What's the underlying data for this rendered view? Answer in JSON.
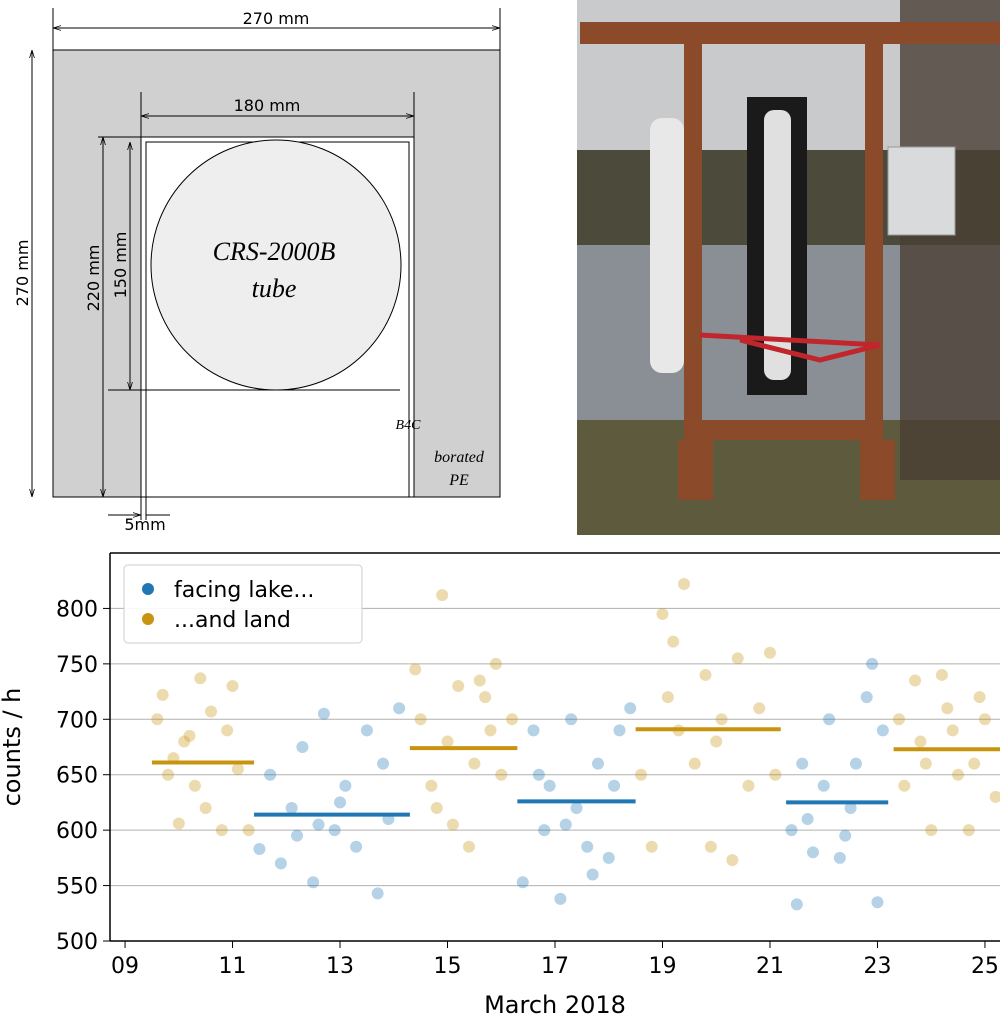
{
  "diagram": {
    "outer_width": "270 mm",
    "inner_width": "180 mm",
    "outer_height": "270 mm",
    "inner_height": "220 mm",
    "tube_diameter": "150 mm",
    "tube_label": [
      "CRS-2000B",
      "tube"
    ],
    "liner_label": "B4C",
    "shield_label": [
      "borated",
      "PE"
    ],
    "liner_thickness": "5mm"
  },
  "chart_data": {
    "type": "scatter",
    "xlabel": "March 2018",
    "ylabel": "counts / h",
    "xlim": [
      8.72,
      25.28
    ],
    "xticks": [
      {
        "value": 9,
        "label": "09"
      },
      11,
      13,
      15,
      17,
      19,
      21,
      23,
      25
    ],
    "ylim": [
      500,
      850
    ],
    "yticks": [
      500,
      550,
      600,
      650,
      700,
      750,
      800
    ],
    "grid": true,
    "legend": "upper left",
    "series": [
      {
        "name": "facing lake...",
        "color": "#1f77b4",
        "x": [
          11.5,
          11.7,
          11.9,
          12.1,
          12.3,
          12.5,
          12.7,
          12.9,
          13.1,
          13.3,
          13.5,
          13.7,
          13.9,
          14.1,
          12.2,
          13.0,
          13.8,
          12.6,
          16.4,
          16.6,
          16.8,
          16.9,
          17.1,
          17.3,
          17.4,
          17.6,
          17.8,
          18.0,
          18.2,
          18.4,
          16.7,
          17.2,
          17.7,
          18.1,
          21.4,
          21.5,
          21.6,
          21.8,
          22.0,
          22.1,
          22.3,
          22.5,
          22.6,
          22.8,
          23.0,
          23.1,
          21.7,
          22.4,
          22.9
        ],
        "values": [
          583,
          650,
          570,
          620,
          675,
          553,
          705,
          600,
          640,
          585,
          690,
          543,
          610,
          710,
          595,
          625,
          660,
          605,
          553,
          690,
          600,
          640,
          538,
          700,
          620,
          585,
          660,
          575,
          690,
          710,
          650,
          605,
          560,
          640,
          600,
          533,
          660,
          580,
          640,
          700,
          575,
          620,
          660,
          720,
          535,
          690,
          610,
          595,
          750
        ],
        "means": [
          {
            "start": 11.4,
            "end": 14.3,
            "value": 614
          },
          {
            "start": 16.3,
            "end": 18.5,
            "value": 626
          },
          {
            "start": 21.3,
            "end": 23.2,
            "value": 625
          }
        ]
      },
      {
        "name": "...and land",
        "color": "#c8930f",
        "x": [
          9.6,
          9.7,
          9.9,
          10.0,
          10.1,
          10.3,
          10.4,
          10.5,
          10.6,
          10.8,
          10.9,
          11.0,
          11.1,
          11.3,
          9.8,
          10.2,
          14.4,
          14.5,
          14.7,
          14.9,
          15.0,
          15.2,
          15.4,
          15.5,
          15.7,
          15.9,
          16.0,
          16.2,
          14.8,
          15.6,
          15.1,
          15.8,
          18.6,
          18.8,
          19.0,
          19.1,
          19.3,
          19.4,
          19.6,
          19.8,
          19.9,
          20.1,
          20.3,
          20.4,
          20.6,
          20.8,
          21.0,
          21.1,
          19.2,
          20.0,
          23.4,
          23.5,
          23.7,
          23.9,
          24.0,
          24.2,
          24.4,
          24.5,
          24.7,
          24.9,
          25.0,
          25.2,
          23.8,
          24.3,
          24.8
        ],
        "values": [
          700,
          722,
          665,
          606,
          680,
          640,
          737,
          620,
          707,
          600,
          690,
          730,
          655,
          600,
          650,
          685,
          745,
          700,
          640,
          812,
          680,
          730,
          585,
          660,
          720,
          750,
          650,
          700,
          620,
          735,
          605,
          690,
          650,
          585,
          795,
          720,
          690,
          822,
          660,
          740,
          585,
          700,
          573,
          755,
          640,
          710,
          760,
          650,
          770,
          680,
          700,
          640,
          735,
          660,
          600,
          740,
          690,
          650,
          600,
          720,
          700,
          630,
          680,
          710,
          660
        ],
        "means": [
          {
            "start": 9.5,
            "end": 11.4,
            "value": 661
          },
          {
            "start": 14.3,
            "end": 16.3,
            "value": 674
          },
          {
            "start": 18.5,
            "end": 21.2,
            "value": 691
          },
          {
            "start": 23.3,
            "end": 25.3,
            "value": 673
          }
        ]
      }
    ]
  }
}
